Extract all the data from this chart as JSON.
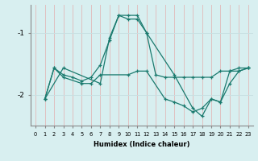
{
  "xlabel": "Humidex (Indice chaleur)",
  "background_color": "#d8eff0",
  "grid_color": "#c8e0e2",
  "line_color": "#1a7a6e",
  "ylim": [
    -2.5,
    -0.55
  ],
  "xlim": [
    -0.5,
    23.5
  ],
  "yticks": [
    -2,
    -1
  ],
  "xticks": [
    0,
    1,
    2,
    3,
    4,
    5,
    6,
    7,
    8,
    9,
    10,
    11,
    12,
    13,
    14,
    15,
    16,
    17,
    18,
    19,
    20,
    21,
    22,
    23
  ],
  "series": [
    {
      "x": [
        1,
        2,
        3,
        4,
        5,
        6,
        7,
        8,
        9,
        10,
        11,
        12,
        13,
        14,
        15,
        16,
        17,
        18,
        19,
        20,
        21,
        22,
        23
      ],
      "y": [
        -2.07,
        -1.57,
        -1.68,
        -1.72,
        -1.78,
        -1.72,
        -1.52,
        -1.12,
        -0.72,
        -0.78,
        -0.78,
        -1.0,
        -1.68,
        -1.72,
        -1.72,
        -1.72,
        -1.72,
        -1.72,
        -1.72,
        -1.62,
        -1.62,
        -1.57,
        -1.57
      ]
    },
    {
      "x": [
        1,
        2,
        3,
        5,
        6,
        7,
        10,
        11,
        12,
        14,
        15,
        16,
        17,
        18,
        19,
        20,
        21,
        22,
        23
      ],
      "y": [
        -2.07,
        -1.57,
        -1.72,
        -1.82,
        -1.82,
        -1.68,
        -1.68,
        -1.62,
        -1.62,
        -2.07,
        -2.12,
        -2.18,
        -2.28,
        -2.22,
        -2.07,
        -2.12,
        -1.82,
        -1.62,
        -1.57
      ]
    },
    {
      "x": [
        1,
        3,
        7,
        8,
        9,
        10,
        11,
        12,
        15,
        17,
        18,
        19,
        20,
        21,
        22,
        23
      ],
      "y": [
        -2.07,
        -1.57,
        -1.82,
        -1.08,
        -0.72,
        -0.72,
        -0.72,
        -1.0,
        -1.68,
        -2.22,
        -2.35,
        -2.07,
        -2.12,
        -1.62,
        -1.62,
        -1.57
      ]
    }
  ]
}
